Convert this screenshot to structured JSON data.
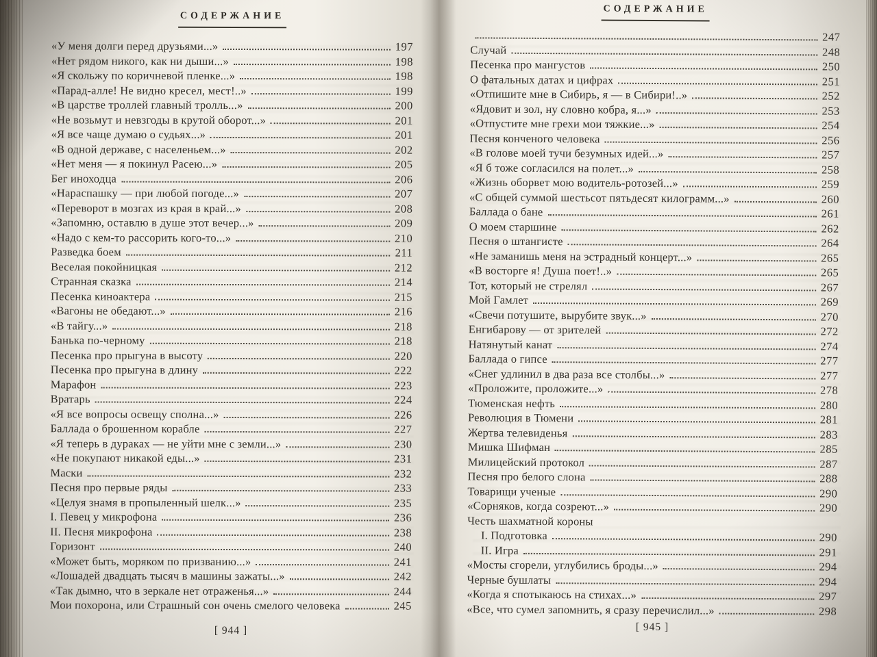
{
  "left_page": {
    "header": "СОДЕРЖАНИЕ",
    "folio": "[ 944 ]",
    "entries": [
      {
        "t": "«У меня долги перед друзьями...»",
        "p": "197"
      },
      {
        "t": "«Нет рядом никого, как ни дыши...»",
        "p": "198"
      },
      {
        "t": "«Я скольжу по коричневой пленке...»",
        "p": "198"
      },
      {
        "t": "«Парад-алле! Не видно кресел, мест!..»",
        "p": "199"
      },
      {
        "t": "«В царстве троллей главный тролль...»",
        "p": "200"
      },
      {
        "t": "«Не возьмут и невзгоды в крутой оборот...»",
        "p": "201"
      },
      {
        "t": "«Я все чаще думаю о судьях...»",
        "p": "201"
      },
      {
        "t": "«В одной державе, с населеньем...»",
        "p": "202"
      },
      {
        "t": "«Нет меня — я покинул Расею...»",
        "p": "205"
      },
      {
        "t": "Бег иноходца",
        "p": "206"
      },
      {
        "t": "«Нараспашку — при любой погоде...»",
        "p": "207"
      },
      {
        "t": "«Переворот в мозгах из края в край...»",
        "p": "208"
      },
      {
        "t": "«Запомню, оставлю в душе этот вечер...»",
        "p": "209"
      },
      {
        "t": "«Надо с кем-то рассорить кого-то...»",
        "p": "210"
      },
      {
        "t": "Разведка боем",
        "p": "211"
      },
      {
        "t": "Веселая покойницкая",
        "p": "212"
      },
      {
        "t": "Странная сказка",
        "p": "214"
      },
      {
        "t": "Песенка киноактера",
        "p": "215"
      },
      {
        "t": "«Вагоны не обедают...»",
        "p": "216"
      },
      {
        "t": "«В тайгу...»",
        "p": "218"
      },
      {
        "t": "Банька по-черному",
        "p": "218"
      },
      {
        "t": "Песенка про прыгуна в высоту",
        "p": "220"
      },
      {
        "t": "Песенка про прыгуна в длину",
        "p": "222"
      },
      {
        "t": "Марафон",
        "p": "223"
      },
      {
        "t": "Вратарь",
        "p": "224"
      },
      {
        "t": "«Я все вопросы освещу сполна...»",
        "p": "226"
      },
      {
        "t": "Баллада о брошенном корабле",
        "p": "227"
      },
      {
        "t": "«Я теперь в дураках — не уйти мне с земли...»",
        "p": "230"
      },
      {
        "t": "«Не покупают никакой еды...»",
        "p": "231"
      },
      {
        "t": "Маски",
        "p": "232"
      },
      {
        "t": "Песня про первые ряды",
        "p": "233"
      },
      {
        "t": "«Целуя знамя в пропыленный шелк...»",
        "p": "235"
      },
      {
        "t": "I. Певец у микрофона",
        "p": "236"
      },
      {
        "t": "II. Песня микрофона",
        "p": "238"
      },
      {
        "t": "Горизонт",
        "p": "240"
      },
      {
        "t": "«Может быть, моряком по призванию...»",
        "p": "241"
      },
      {
        "t": "«Лошадей двадцать тысяч в машины зажаты...»",
        "p": "242"
      },
      {
        "t": "«Так дымно, что в зеркале нет отраженья...»",
        "p": "244"
      },
      {
        "t": "Мои похорона, или Страшный сон очень смелого человека",
        "p": "245"
      }
    ]
  },
  "right_page": {
    "header": "СОДЕРЖАНИЕ",
    "folio": "[ 945 ]",
    "entries": [
      {
        "t": "",
        "p": "247"
      },
      {
        "t": "Случай",
        "p": "248"
      },
      {
        "t": "Песенка про мангустов",
        "p": "250"
      },
      {
        "t": "О фатальных датах и цифрах",
        "p": "251"
      },
      {
        "t": "«Отпишите мне в Сибирь, я — в Сибири!..»",
        "p": "252"
      },
      {
        "t": "«Ядовит и зол, ну словно кобра, я...»",
        "p": "253"
      },
      {
        "t": "«Отпустите мне грехи мои тяжкие...»",
        "p": "254"
      },
      {
        "t": "Песня конченого человека",
        "p": "256"
      },
      {
        "t": "«В голове моей тучи безумных идей...»",
        "p": "257"
      },
      {
        "t": "«Я б тоже согласился на полет...»",
        "p": "258"
      },
      {
        "t": "«Жизнь оборвет мою водитель-ротозей...»",
        "p": "259"
      },
      {
        "t": "«С общей суммой шестьсот пятьдесят килограмм...»",
        "p": "260"
      },
      {
        "t": "Баллада о бане",
        "p": "261"
      },
      {
        "t": "О моем старшине",
        "p": "262"
      },
      {
        "t": "Песня о штангисте",
        "p": "264"
      },
      {
        "t": "«Не заманишь меня на эстрадный концерт...»",
        "p": "265"
      },
      {
        "t": "«В восторге я! Душа поет!..»",
        "p": "265"
      },
      {
        "t": "Тот, который не стрелял",
        "p": "267"
      },
      {
        "t": "Мой Гамлет",
        "p": "269"
      },
      {
        "t": "«Свечи потушите, вырубите звук...»",
        "p": "270"
      },
      {
        "t": "Енгибарову — от зрителей",
        "p": "272"
      },
      {
        "t": "Натянутый канат",
        "p": "274"
      },
      {
        "t": "Баллада о гипсе",
        "p": "277"
      },
      {
        "t": "«Снег удлинил в два раза все столбы...»",
        "p": "277"
      },
      {
        "t": "«Проложите, проложите...»",
        "p": "278"
      },
      {
        "t": "Тюменская нефть",
        "p": "280"
      },
      {
        "t": "Революция в Тюмени",
        "p": "281"
      },
      {
        "t": "Жертва телевиденья",
        "p": "283"
      },
      {
        "t": "Мишка Шифман",
        "p": "285"
      },
      {
        "t": "Милицейский протокол",
        "p": "287"
      },
      {
        "t": "Песня про белого слона",
        "p": "288"
      },
      {
        "t": "Товарищи ученые",
        "p": "290"
      },
      {
        "t": "«Сорняков, когда созреют...»",
        "p": "290"
      },
      {
        "t": "Честь шахматной короны",
        "p": "",
        "nodots": true
      },
      {
        "t": "I. Подготовка",
        "p": "290",
        "indent": true
      },
      {
        "t": "II. Игра",
        "p": "291",
        "indent": true
      },
      {
        "t": "«Мосты сгорели, углубились броды...»",
        "p": "294"
      },
      {
        "t": "Черные бушлаты",
        "p": "294"
      },
      {
        "t": "«Когда я спотыкаюсь на стихах...»",
        "p": "297"
      },
      {
        "t": "«Все, что сумел запомнить, я сразу перечислил...»",
        "p": "298"
      }
    ]
  },
  "colors": {
    "paper": "#f3f0e9",
    "text": "#34312b",
    "dots": "#4e4a42",
    "edge_shadow": "#5e5950"
  }
}
